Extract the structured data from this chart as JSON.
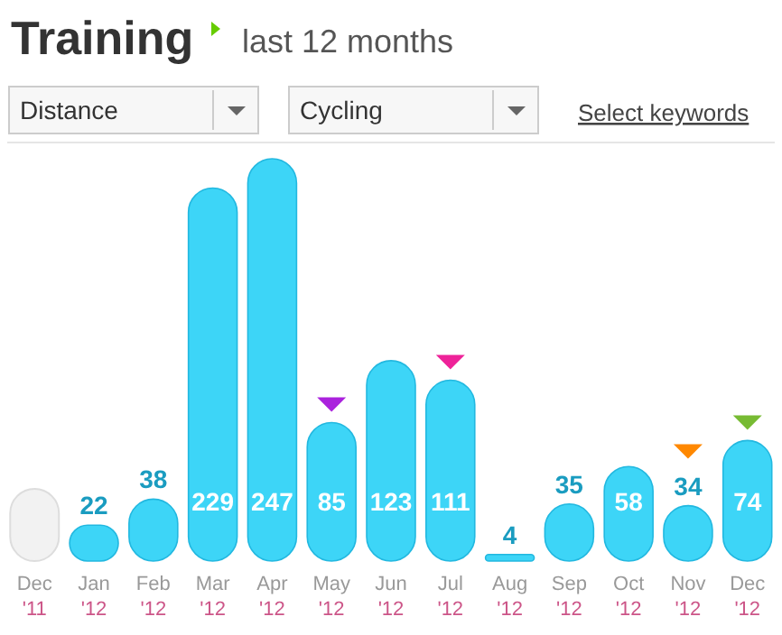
{
  "chart_data": {
    "type": "bar",
    "title": "Training",
    "subtitle": "last 12 months",
    "annotations": [
      "Distance",
      "Cycling",
      "Select keywords"
    ],
    "categories": [
      "Dec '11",
      "Jan '12",
      "Feb '12",
      "Mar '12",
      "Apr '12",
      "May '12",
      "Jun '12",
      "Jul '12",
      "Aug '12",
      "Sep '12",
      "Oct '12",
      "Nov '12",
      "Dec '12"
    ],
    "values": [
      null,
      22,
      38,
      229,
      247,
      85,
      123,
      111,
      4,
      35,
      58,
      34,
      74
    ],
    "color": "#3dd5f7",
    "data_labels": true
  }
}
